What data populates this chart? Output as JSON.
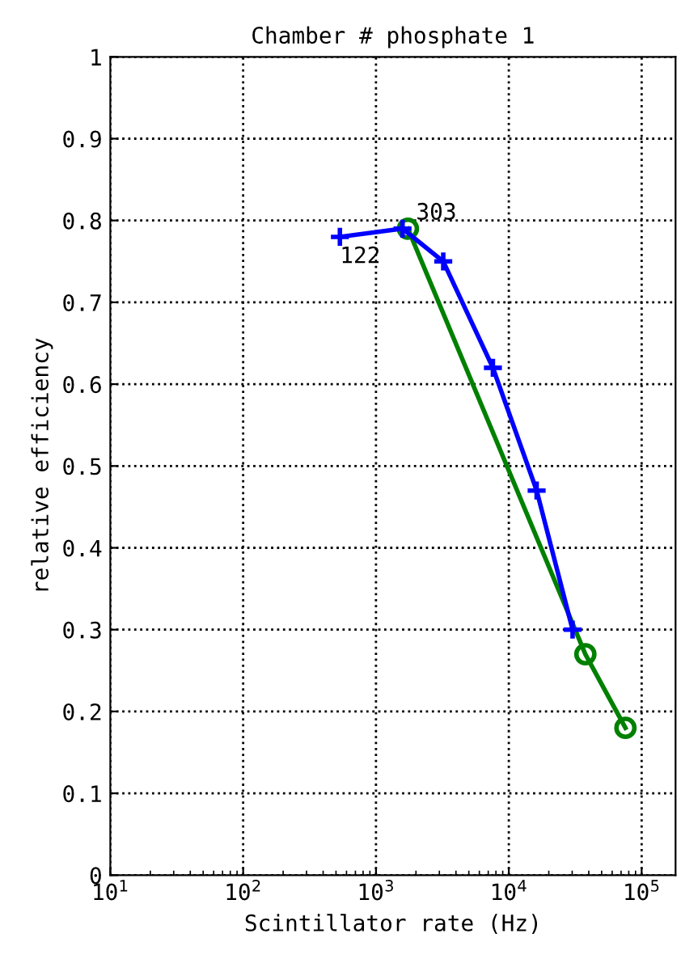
{
  "chart_data": {
    "type": "line",
    "title": "Chamber # phosphate 1",
    "xlabel": "Scintillator rate (Hz)",
    "ylabel": "relative efficiency",
    "log": "x",
    "grid": true,
    "line_style": "solid",
    "xlim": [
      10,
      180000
    ],
    "xticks": [
      {
        "value": 10,
        "label": "10$^{1}$"
      },
      {
        "value": 100,
        "label": "10$^{2}$"
      },
      {
        "value": 1000,
        "label": "10$^{3}$"
      },
      {
        "value": 10000,
        "label": "10$^{4}$"
      },
      {
        "value": 100000,
        "label": "10$^{5}$"
      }
    ],
    "ylim": [
      0,
      1
    ],
    "yticks": [
      0,
      0.1,
      0.2,
      0.3,
      0.4,
      0.5,
      0.6,
      0.7,
      0.8,
      0.9,
      1
    ],
    "series": [
      {
        "color": "#0000ff",
        "marker": "cross",
        "x": [
          535,
          1585,
          3210,
          7590,
          16200,
          30200
        ],
        "values": [
          0.78,
          0.79,
          0.75,
          0.62,
          0.47,
          0.3
        ]
      },
      {
        "color": "#008000",
        "marker": "circle",
        "x": [
          1740,
          37700,
          75500
        ],
        "values": [
          0.79,
          0.27,
          0.18
        ]
      }
    ],
    "annotations": [
      {
        "text": "122",
        "x": 535,
        "y": 0.78
      },
      {
        "text": "303",
        "x": 1585,
        "y": 0.79
      }
    ]
  }
}
